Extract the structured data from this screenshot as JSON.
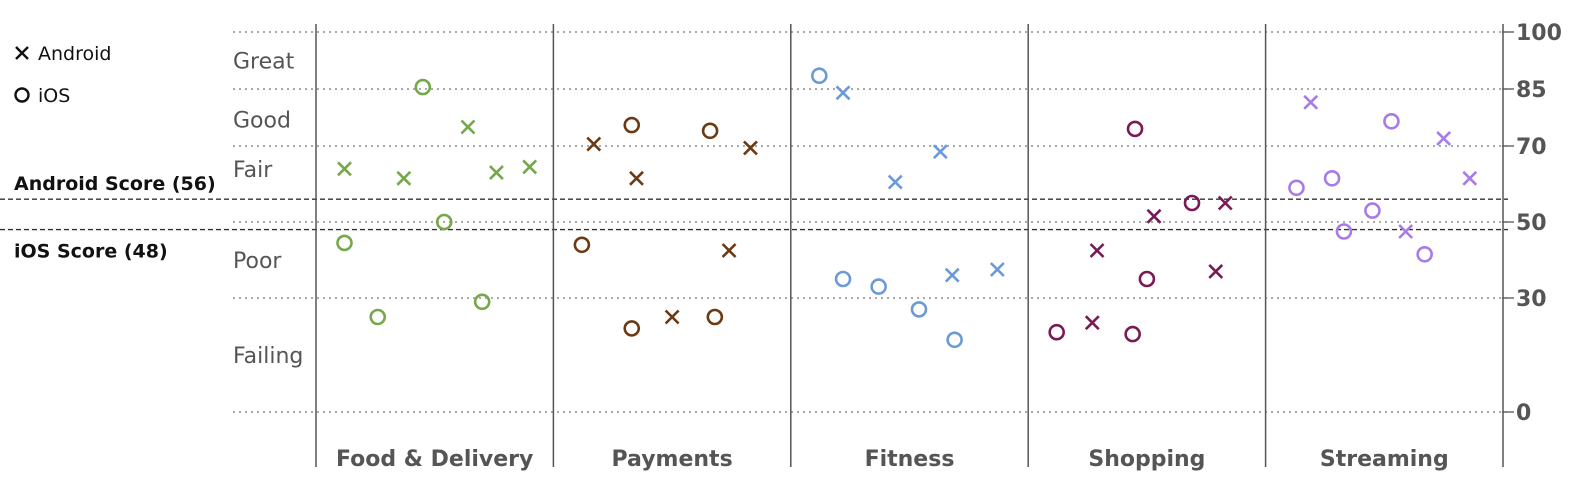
{
  "chart_data": {
    "type": "scatter",
    "y_range": [
      0,
      100
    ],
    "y_ticks": [
      "100",
      "85",
      "70",
      "50",
      "30",
      "0"
    ],
    "y_tick_values": [
      100,
      85,
      70,
      50,
      30,
      0
    ],
    "grid": "horizontal dotted",
    "legend_placement": "top-left",
    "bands": [
      {
        "label": "Great",
        "value": 92.5
      },
      {
        "label": "Good",
        "value": 77
      },
      {
        "label": "Fair",
        "value": 64
      },
      {
        "label": "Poor",
        "value": 40
      },
      {
        "label": "Failing",
        "value": 15
      }
    ],
    "reference_lines": [
      {
        "label": "Android Score (56)",
        "value": 56
      },
      {
        "label": "iOS Score (48)",
        "value": 48
      }
    ],
    "legend": [
      {
        "label": "Android",
        "marker": "cross"
      },
      {
        "label": "iOS",
        "marker": "circle"
      }
    ],
    "categories": [
      {
        "name": "Food & Delivery",
        "color": "#74A84A",
        "android": [
          {
            "x": 0.12,
            "y": 64
          },
          {
            "x": 0.37,
            "y": 61.5
          },
          {
            "x": 0.64,
            "y": 75
          },
          {
            "x": 0.76,
            "y": 63
          },
          {
            "x": 0.9,
            "y": 64.5
          }
        ],
        "ios": [
          {
            "x": 0.12,
            "y": 44.5
          },
          {
            "x": 0.26,
            "y": 25
          },
          {
            "x": 0.45,
            "y": 85.5
          },
          {
            "x": 0.54,
            "y": 50
          },
          {
            "x": 0.7,
            "y": 29
          }
        ]
      },
      {
        "name": "Payments",
        "color": "#6B3A13",
        "android": [
          {
            "x": 0.17,
            "y": 70.5
          },
          {
            "x": 0.35,
            "y": 61.5
          },
          {
            "x": 0.5,
            "y": 25
          },
          {
            "x": 0.74,
            "y": 42.5
          },
          {
            "x": 0.83,
            "y": 69.5
          }
        ],
        "ios": [
          {
            "x": 0.12,
            "y": 44
          },
          {
            "x": 0.33,
            "y": 22
          },
          {
            "x": 0.33,
            "y": 75.5
          },
          {
            "x": 0.66,
            "y": 74
          },
          {
            "x": 0.68,
            "y": 25
          }
        ]
      },
      {
        "name": "Fitness",
        "color": "#6B9AD8",
        "android": [
          {
            "x": 0.22,
            "y": 84
          },
          {
            "x": 0.44,
            "y": 60.5
          },
          {
            "x": 0.63,
            "y": 68.5
          },
          {
            "x": 0.68,
            "y": 36
          },
          {
            "x": 0.87,
            "y": 37.5
          }
        ],
        "ios": [
          {
            "x": 0.12,
            "y": 88.5
          },
          {
            "x": 0.22,
            "y": 35
          },
          {
            "x": 0.37,
            "y": 33
          },
          {
            "x": 0.54,
            "y": 27
          },
          {
            "x": 0.69,
            "y": 19
          }
        ]
      },
      {
        "name": "Shopping",
        "color": "#7A1A55",
        "android": [
          {
            "x": 0.29,
            "y": 42.5
          },
          {
            "x": 0.27,
            "y": 23.5
          },
          {
            "x": 0.53,
            "y": 51.5
          },
          {
            "x": 0.79,
            "y": 37
          },
          {
            "x": 0.83,
            "y": 55
          }
        ],
        "ios": [
          {
            "x": 0.12,
            "y": 21
          },
          {
            "x": 0.44,
            "y": 20.5
          },
          {
            "x": 0.45,
            "y": 74.5
          },
          {
            "x": 0.5,
            "y": 35
          },
          {
            "x": 0.69,
            "y": 55
          }
        ]
      },
      {
        "name": "Streaming",
        "color": "#A77BE8",
        "android": [
          {
            "x": 0.19,
            "y": 81.5
          },
          {
            "x": 0.59,
            "y": 47.5
          },
          {
            "x": 0.75,
            "y": 72
          },
          {
            "x": 0.86,
            "y": 61.5
          }
        ],
        "ios": [
          {
            "x": 0.13,
            "y": 59
          },
          {
            "x": 0.28,
            "y": 61.5
          },
          {
            "x": 0.33,
            "y": 47.5
          },
          {
            "x": 0.45,
            "y": 53
          },
          {
            "x": 0.53,
            "y": 76.5
          },
          {
            "x": 0.67,
            "y": 41.5
          }
        ]
      }
    ]
  }
}
